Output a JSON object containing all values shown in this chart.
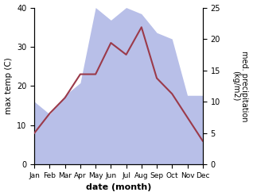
{
  "months": [
    "Jan",
    "Feb",
    "Mar",
    "Apr",
    "May",
    "Jun",
    "Jul",
    "Aug",
    "Sep",
    "Oct",
    "Nov",
    "Dec"
  ],
  "month_indices": [
    0,
    1,
    2,
    3,
    4,
    5,
    6,
    7,
    8,
    9,
    10,
    11
  ],
  "temperature": [
    8,
    13,
    17,
    23,
    23,
    31,
    28,
    35,
    22,
    18,
    12,
    6
  ],
  "precipitation": [
    10,
    8,
    11,
    13,
    25,
    23,
    25,
    24,
    21,
    20,
    11,
    11
  ],
  "temp_color": "#9b3a4a",
  "precip_fill_color": "#b8bfe8",
  "ylabel_left": "max temp (C)",
  "ylabel_right": "med. precipitation\n(kg/m2)",
  "xlabel": "date (month)",
  "ylim_left": [
    0,
    40
  ],
  "ylim_right": [
    0,
    25
  ],
  "yticks_left": [
    0,
    10,
    20,
    30,
    40
  ],
  "yticks_right": [
    0,
    5,
    10,
    15,
    20,
    25
  ],
  "fig_width": 3.18,
  "fig_height": 2.47,
  "dpi": 100
}
